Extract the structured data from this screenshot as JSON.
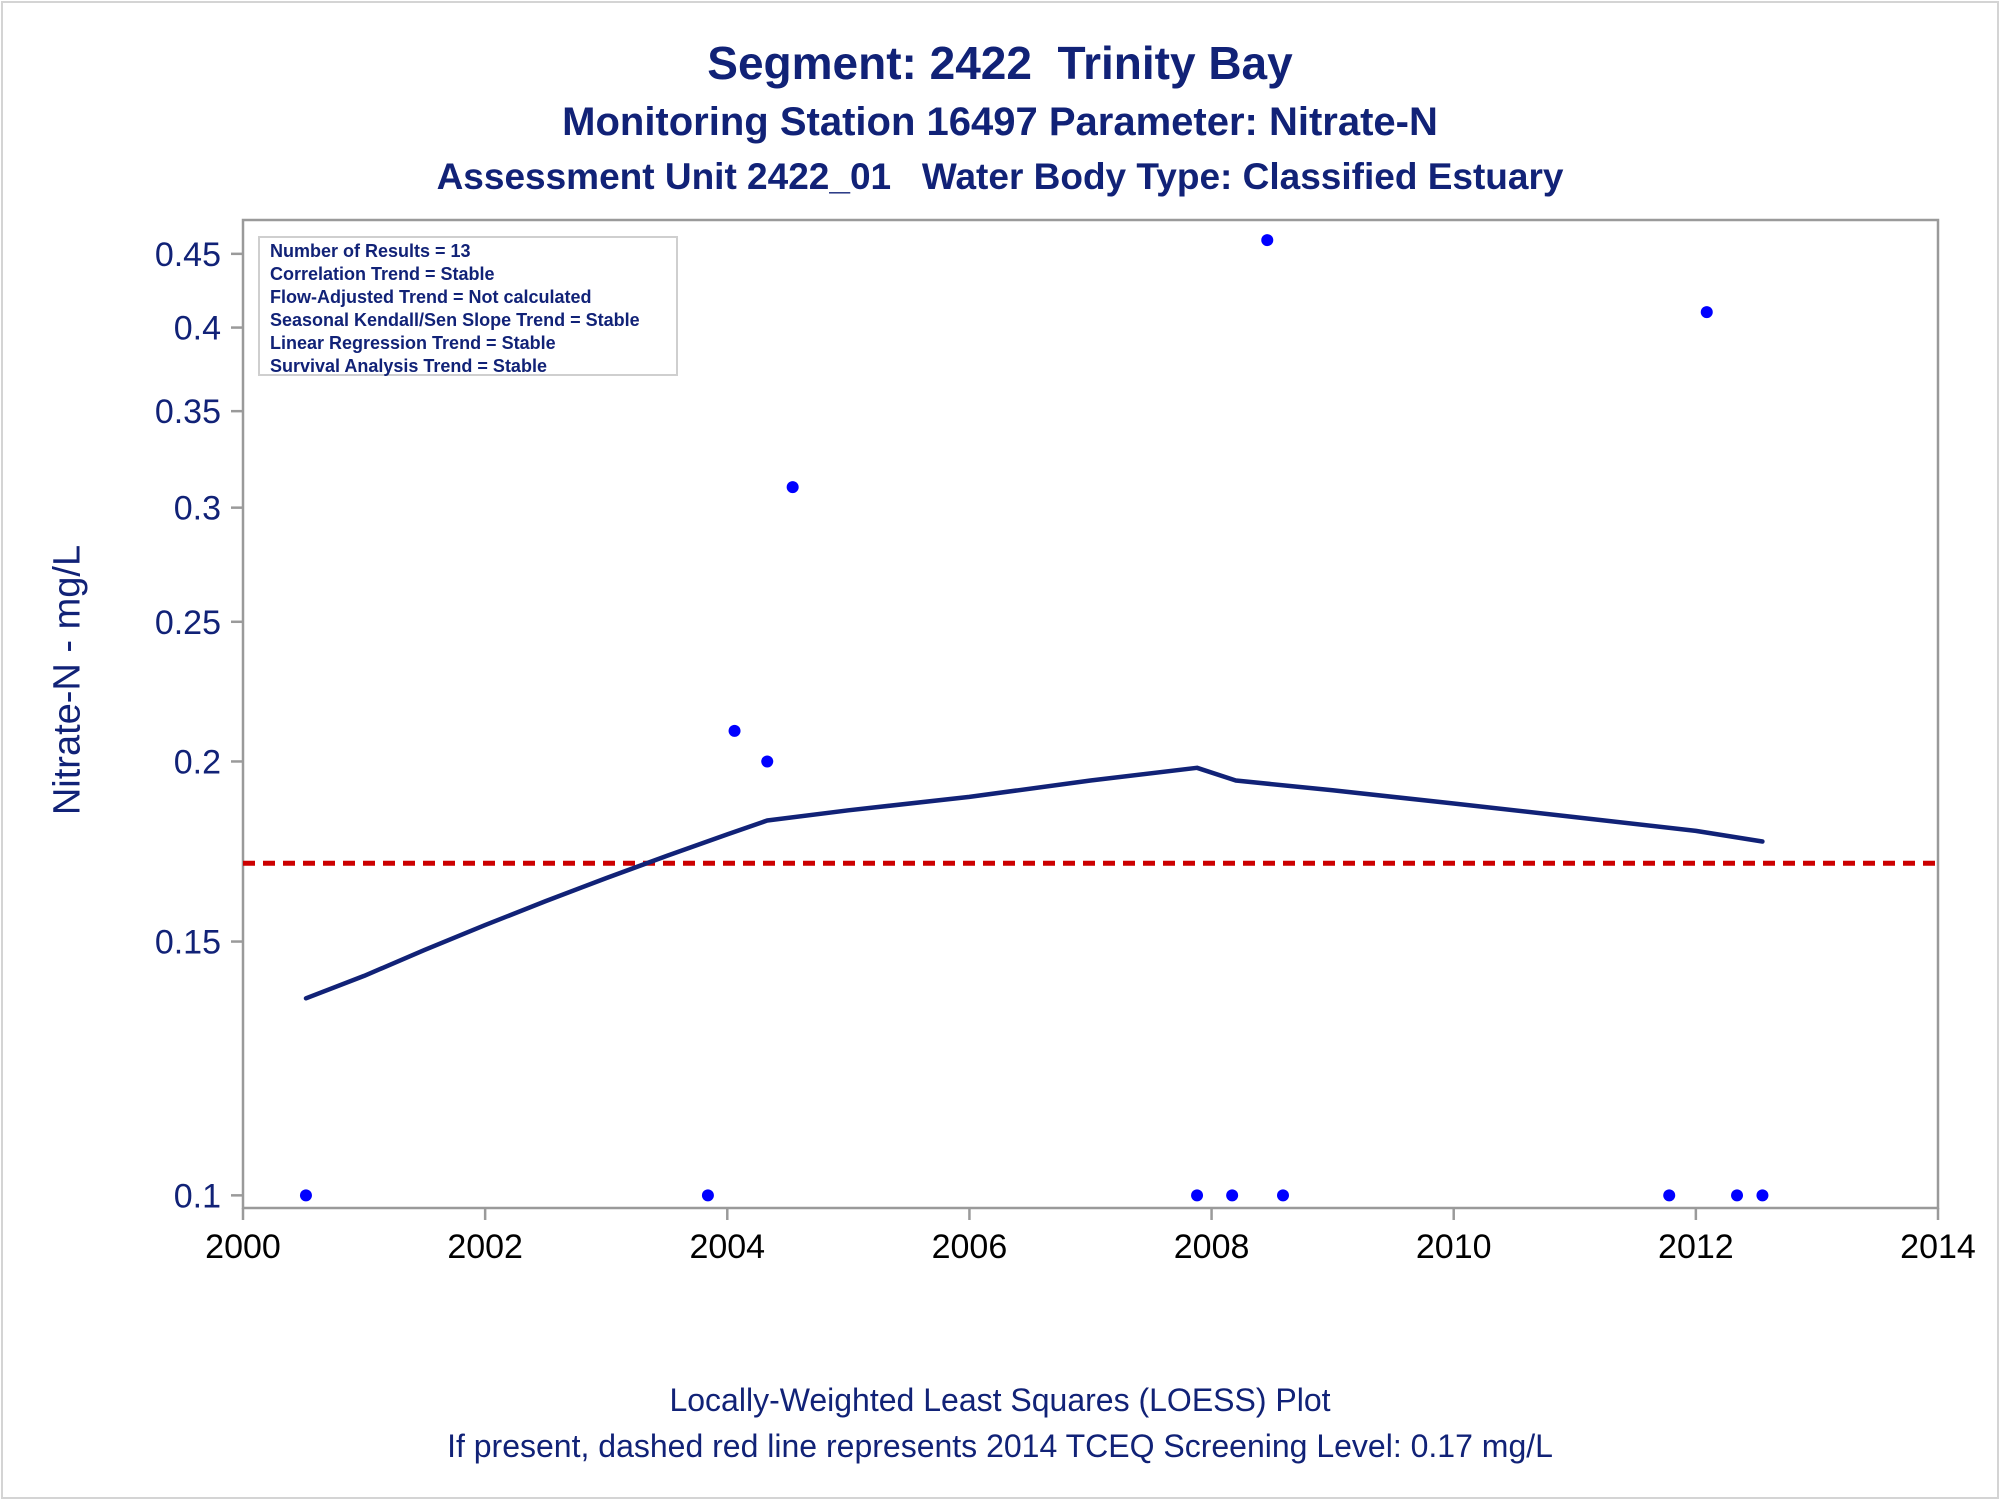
{
  "chart_data": {
    "type": "scatter",
    "title": "Segment: 2422  Trinity Bay",
    "subtitle_lines": [
      "Monitoring Station 16497 Parameter: Nitrate-N",
      "Assessment Unit 2422_01   Water Body Type: Classified Estuary"
    ],
    "xlabel": "",
    "ylabel": "Nitrate-N - mg/L",
    "yscale": "log",
    "xlim": [
      2000,
      2014
    ],
    "ylim": [
      0.098,
      0.475
    ],
    "x_ticks": [
      2000,
      2002,
      2004,
      2006,
      2008,
      2010,
      2012,
      2014
    ],
    "x_tick_labels": [
      "2000",
      "2002",
      "2004",
      "2006",
      "2008",
      "2010",
      "2012",
      "2014"
    ],
    "y_ticks": [
      0.1,
      0.15,
      0.2,
      0.25,
      0.3,
      0.35,
      0.4,
      0.45
    ],
    "y_tick_labels": [
      "0.1",
      "0.15",
      "0.2",
      "0.25",
      "0.3",
      "0.35",
      "0.4",
      "0.45"
    ],
    "grid": false,
    "points": [
      {
        "x": 2000.52,
        "y": 0.1
      },
      {
        "x": 2003.84,
        "y": 0.1
      },
      {
        "x": 2004.06,
        "y": 0.21
      },
      {
        "x": 2004.33,
        "y": 0.2
      },
      {
        "x": 2004.54,
        "y": 0.31
      },
      {
        "x": 2007.88,
        "y": 0.1
      },
      {
        "x": 2008.17,
        "y": 0.1
      },
      {
        "x": 2008.46,
        "y": 0.46
      },
      {
        "x": 2008.59,
        "y": 0.1
      },
      {
        "x": 2011.78,
        "y": 0.1
      },
      {
        "x": 2012.09,
        "y": 0.41
      },
      {
        "x": 2012.34,
        "y": 0.1
      },
      {
        "x": 2012.55,
        "y": 0.1
      }
    ],
    "loess_curve": [
      {
        "x": 2000.52,
        "y": 0.137
      },
      {
        "x": 2001.0,
        "y": 0.142
      },
      {
        "x": 2001.5,
        "y": 0.148
      },
      {
        "x": 2002.0,
        "y": 0.154
      },
      {
        "x": 2002.5,
        "y": 0.16
      },
      {
        "x": 2003.0,
        "y": 0.166
      },
      {
        "x": 2003.5,
        "y": 0.172
      },
      {
        "x": 2004.0,
        "y": 0.178
      },
      {
        "x": 2004.33,
        "y": 0.182
      },
      {
        "x": 2005.0,
        "y": 0.185
      },
      {
        "x": 2006.0,
        "y": 0.189
      },
      {
        "x": 2007.0,
        "y": 0.194
      },
      {
        "x": 2007.88,
        "y": 0.198
      },
      {
        "x": 2008.2,
        "y": 0.194
      },
      {
        "x": 2009.0,
        "y": 0.191
      },
      {
        "x": 2010.0,
        "y": 0.187
      },
      {
        "x": 2011.0,
        "y": 0.183
      },
      {
        "x": 2012.0,
        "y": 0.179
      },
      {
        "x": 2012.55,
        "y": 0.176
      }
    ],
    "reference_line": {
      "y": 0.17,
      "style": "dashed",
      "color": "#cc0000"
    },
    "point_color": "#0000ff",
    "curve_color": "#112277",
    "text_color": "#112277",
    "stats_box": {
      "placement": "top-left",
      "lines": [
        "Number of Results = 13",
        "Correlation Trend = Stable",
        "Flow-Adjusted Trend = Not calculated",
        "Seasonal Kendall/Sen Slope Trend = Stable",
        "Linear Regression Trend = Stable",
        "Survival Analysis Trend = Stable"
      ]
    },
    "footnotes": [
      "Locally-Weighted Least Squares (LOESS) Plot",
      "If present, dashed red line represents 2014 TCEQ Screening Level: 0.17 mg/L"
    ]
  }
}
